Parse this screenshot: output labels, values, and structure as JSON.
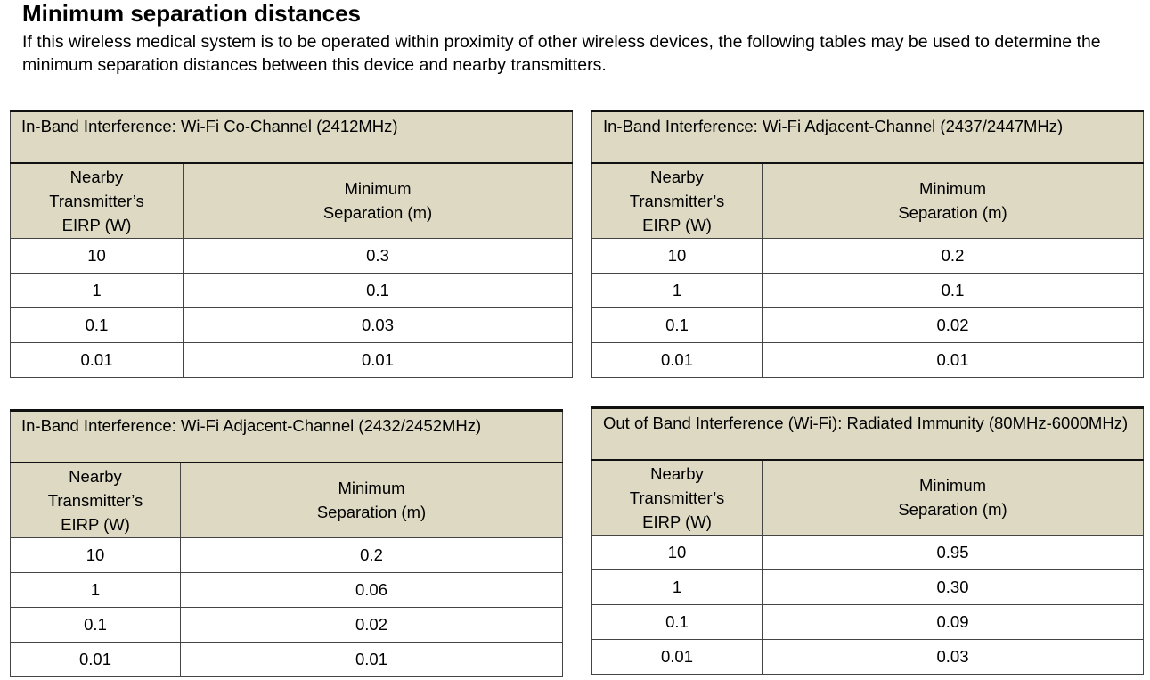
{
  "header": {
    "title": "Minimum separation distances",
    "intro": "If this wireless medical system is to be operated within proximity of other wireless devices, the following tables may be used to determine the minimum separation distances between this device and nearby transmitters."
  },
  "tables": [
    {
      "title": "In-Band Interference:  Wi-Fi Co-Channel (2412MHz)",
      "columns": [
        "Nearby Transmitter’s EIRP (W)",
        "Minimum Separation (m)"
      ],
      "rows": [
        [
          "10",
          "0.3"
        ],
        [
          "1",
          "0.1"
        ],
        [
          "0.1",
          "0.03"
        ],
        [
          "0.01",
          "0.01"
        ]
      ]
    },
    {
      "title": "In-Band Interference:  Wi-Fi Adjacent-Channel (2437/2447MHz)",
      "columns": [
        "Nearby Transmitter’s EIRP (W)",
        "Minimum Separation (m)"
      ],
      "rows": [
        [
          "10",
          "0.2"
        ],
        [
          "1",
          "0.1"
        ],
        [
          "0.1",
          "0.02"
        ],
        [
          "0.01",
          "0.01"
        ]
      ]
    },
    {
      "title": "In-Band Interference:  Wi-Fi Adjacent-Channel (2432/2452MHz)",
      "columns": [
        "Nearby Transmitter’s EIRP (W)",
        "Minimum Separation (m)"
      ],
      "rows": [
        [
          "10",
          "0.2"
        ],
        [
          "1",
          "0.06"
        ],
        [
          "0.1",
          "0.02"
        ],
        [
          "0.01",
          "0.01"
        ]
      ]
    },
    {
      "title": "Out of Band Interference (Wi-Fi):  Radiated Immunity (80MHz-6000MHz)",
      "columns": [
        "Nearby Transmitter’s EIRP (W)",
        "Minimum Separation (m)"
      ],
      "rows": [
        [
          "10",
          "0.95"
        ],
        [
          "1",
          "0.30"
        ],
        [
          "0.1",
          "0.09"
        ],
        [
          "0.01",
          "0.03"
        ]
      ]
    }
  ]
}
